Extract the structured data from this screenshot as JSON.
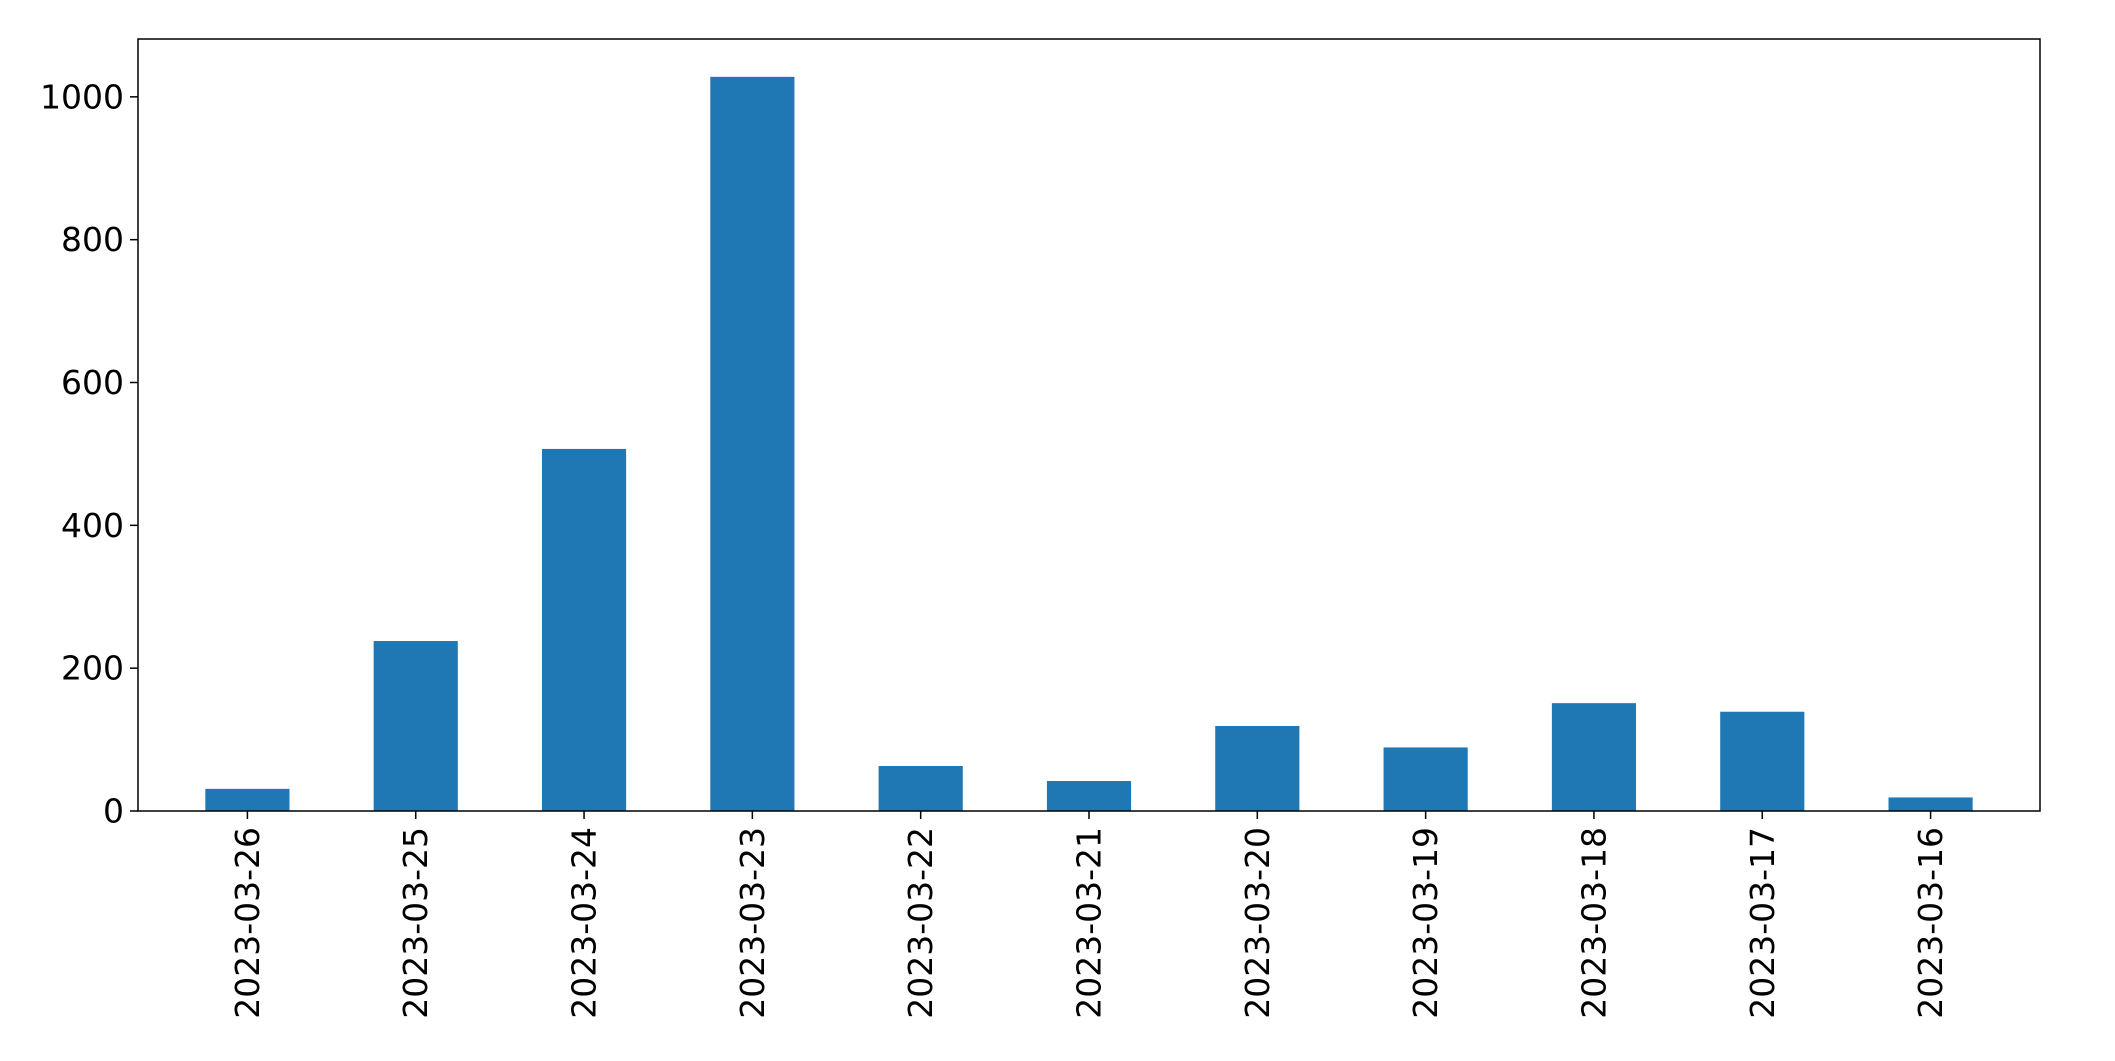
{
  "chart_data": {
    "type": "bar",
    "title": "",
    "xlabel": "",
    "ylabel": "",
    "categories": [
      "2023-03-26",
      "2023-03-25",
      "2023-03-24",
      "2023-03-23",
      "2023-03-22",
      "2023-03-21",
      "2023-03-20",
      "2023-03-19",
      "2023-03-18",
      "2023-03-17",
      "2023-03-16"
    ],
    "values": [
      31,
      238,
      507,
      1028,
      63,
      42,
      119,
      89,
      151,
      139,
      19
    ],
    "ylim": [
      0,
      1081
    ],
    "yticks": [
      0,
      200,
      400,
      600,
      800,
      1000
    ],
    "grid": false,
    "legend": "none",
    "bar_color": "#1f77b4"
  }
}
